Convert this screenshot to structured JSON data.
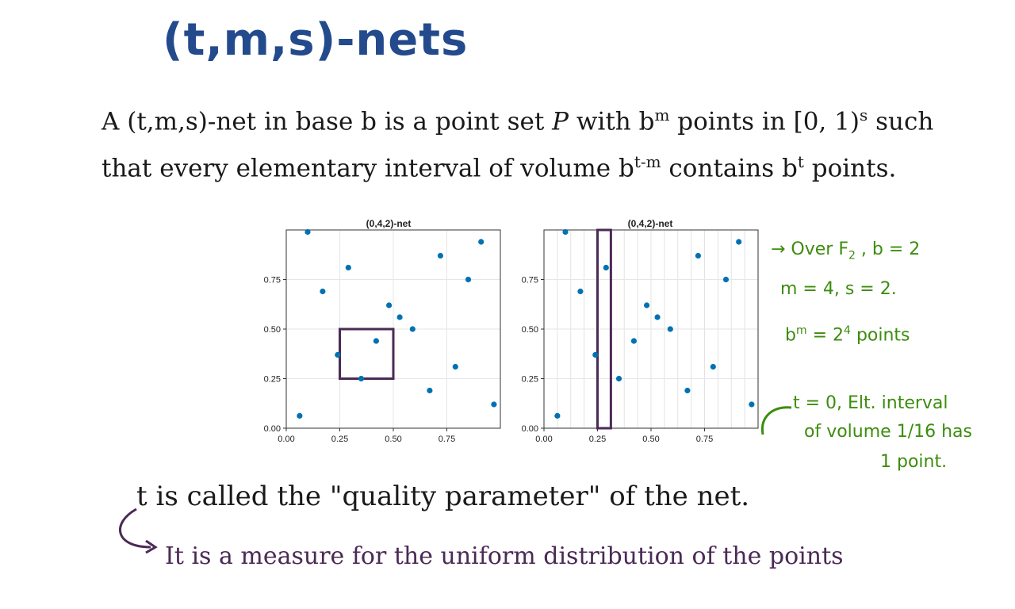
{
  "title": "(t,m,s)-nets",
  "definition": {
    "text_a": "A (t,m,s)-net in base b is a point set ",
    "P": "P",
    "text_b": " with b",
    "sup_m": "m",
    "text_c": " points in [0, 1)",
    "sup_s": "s",
    "text_d": " such that every elementary interval of volume b",
    "sup_tm": "t-m",
    "text_e": " contains b",
    "sup_t": "t",
    "text_f": " points."
  },
  "chart_data": [
    {
      "type": "scatter",
      "title": "(0,4,2)-net",
      "xlim": [
        0,
        1
      ],
      "ylim": [
        0,
        1
      ],
      "xticks": [
        0.0,
        0.25,
        0.5,
        0.75
      ],
      "yticks": [
        0.0,
        0.25,
        0.5,
        0.75
      ],
      "xtick_labels": [
        "0.00",
        "0.25",
        "0.50",
        "0.75"
      ],
      "ytick_labels": [
        "0.00",
        "0.25",
        "0.50",
        "0.75"
      ],
      "grid": true,
      "point_color": "#0072b2",
      "points": [
        [
          0.0625,
          0.0625
        ],
        [
          0.1,
          0.99
        ],
        [
          0.17,
          0.69
        ],
        [
          0.29,
          0.81
        ],
        [
          0.24,
          0.37
        ],
        [
          0.35,
          0.25
        ],
        [
          0.42,
          0.44
        ],
        [
          0.48,
          0.62
        ],
        [
          0.53,
          0.56
        ],
        [
          0.59,
          0.5
        ],
        [
          0.67,
          0.19
        ],
        [
          0.72,
          0.87
        ],
        [
          0.79,
          0.31
        ],
        [
          0.85,
          0.75
        ],
        [
          0.91,
          0.94
        ],
        [
          0.97,
          0.12
        ]
      ],
      "highlight_box": {
        "x": [
          0.25,
          0.5
        ],
        "y": [
          0.25,
          0.5
        ],
        "color": "#4b2a56"
      }
    },
    {
      "type": "scatter",
      "title": "(0,4,2)-net",
      "xlim": [
        0,
        1
      ],
      "ylim": [
        0,
        1
      ],
      "xticks": [
        0.0,
        0.25,
        0.5,
        0.75
      ],
      "yticks": [
        0.0,
        0.25,
        0.5,
        0.75
      ],
      "xtick_labels": [
        "0.00",
        "0.25",
        "0.50",
        "0.75"
      ],
      "ytick_labels": [
        "0.00",
        "0.25",
        "0.50",
        "0.75"
      ],
      "grid": true,
      "vertical_gridlines_every": 0.0625,
      "point_color": "#0072b2",
      "points": [
        [
          0.0625,
          0.0625
        ],
        [
          0.1,
          0.99
        ],
        [
          0.17,
          0.69
        ],
        [
          0.29,
          0.81
        ],
        [
          0.24,
          0.37
        ],
        [
          0.35,
          0.25
        ],
        [
          0.42,
          0.44
        ],
        [
          0.48,
          0.62
        ],
        [
          0.53,
          0.56
        ],
        [
          0.59,
          0.5
        ],
        [
          0.67,
          0.19
        ],
        [
          0.72,
          0.87
        ],
        [
          0.79,
          0.31
        ],
        [
          0.85,
          0.75
        ],
        [
          0.91,
          0.94
        ],
        [
          0.97,
          0.12
        ]
      ],
      "highlight_box": {
        "x": [
          0.25,
          0.3125
        ],
        "y": [
          0.0,
          1.0
        ],
        "color": "#4b2a56"
      }
    }
  ],
  "notes": {
    "over_line1": "→ Over F",
    "over_sub": "2",
    "over_line1b": " , b = 2",
    "over_line2": "m = 4, s = 2.",
    "over_line3a": "b",
    "over_line3_sup_m": "m",
    "over_line3b": " = 2",
    "over_line3_sup_4": "4",
    "over_line3c": " points",
    "t_line1": "t = 0, Elt. interval",
    "t_line2": "of volume 1/16 has",
    "t_line3": "1 point."
  },
  "quality": "t is called the \"quality parameter\" of the net.",
  "measure": "It is a measure for the uniform distribution of the points",
  "colors": {
    "title": "#234a8c",
    "green": "#3c8d0d",
    "purple": "#4b2a56",
    "points": "#0072b2"
  }
}
